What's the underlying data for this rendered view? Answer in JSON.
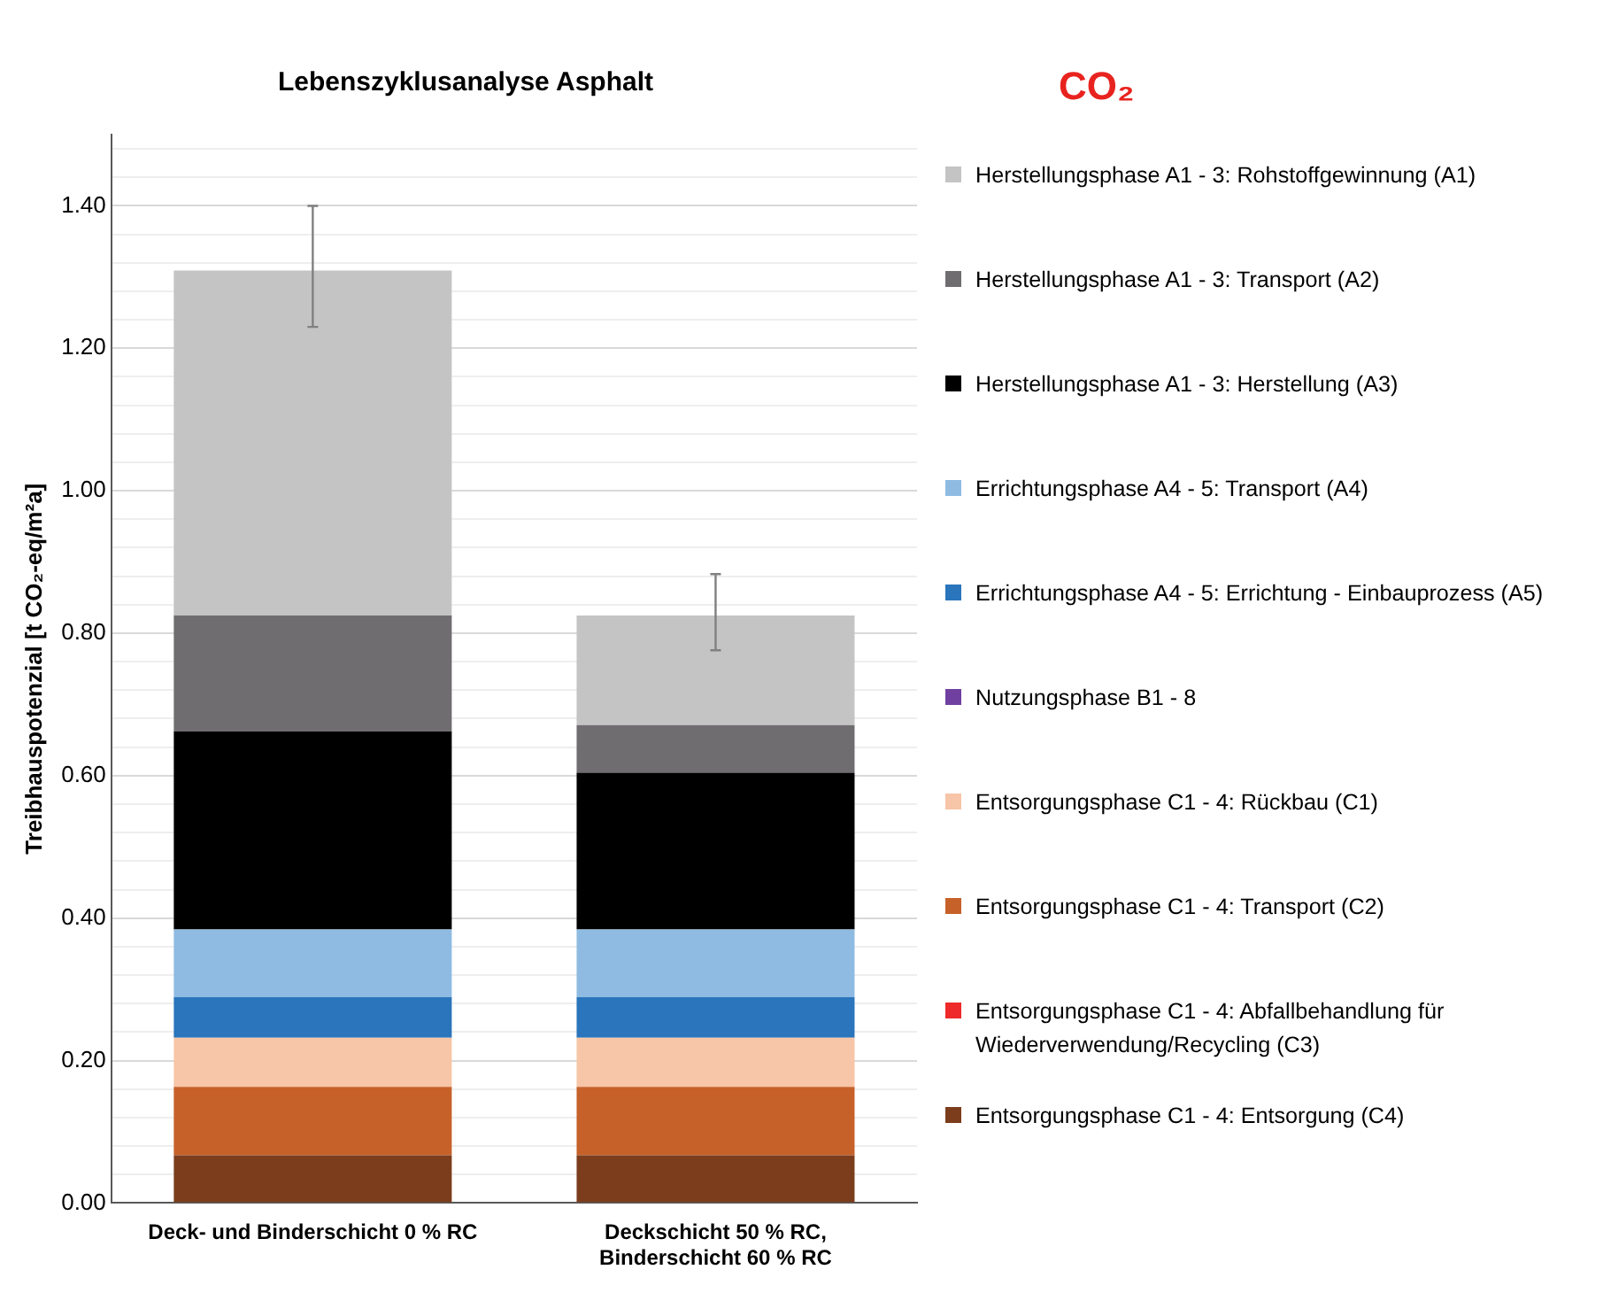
{
  "chart_data": {
    "type": "bar",
    "title": "Lebenszyklusanalyse Asphalt",
    "ylabel": "Treibhauspotenzial [t CO₂-eq/m²a]",
    "annotations": [
      "CO₂"
    ],
    "categories": [
      "Deck- und Binderschicht 0 % RC",
      "Deckschicht 50 % RC, Binderschicht 60 % RC"
    ],
    "stacked": true,
    "grid": "y",
    "legend": "right",
    "ylim": [
      0,
      1.5
    ],
    "yticks": [
      {
        "value": 0,
        "label": "0.00"
      },
      {
        "value": 0.04,
        "label": null
      },
      {
        "value": 0.08,
        "label": null
      },
      {
        "value": 0.12,
        "label": null
      },
      {
        "value": 0.16,
        "label": null
      },
      {
        "value": 0.2,
        "label": "0.20"
      },
      {
        "value": 0.24,
        "label": null
      },
      {
        "value": 0.28,
        "label": null
      },
      {
        "value": 0.32,
        "label": null
      },
      {
        "value": 0.36,
        "label": null
      },
      {
        "value": 0.4,
        "label": "0.40"
      },
      {
        "value": 0.44,
        "label": null
      },
      {
        "value": 0.48,
        "label": null
      },
      {
        "value": 0.52,
        "label": null
      },
      {
        "value": 0.56,
        "label": null
      },
      {
        "value": 0.6,
        "label": "0.60"
      },
      {
        "value": 0.64,
        "label": null
      },
      {
        "value": 0.68,
        "label": null
      },
      {
        "value": 0.72,
        "label": null
      },
      {
        "value": 0.76,
        "label": null
      },
      {
        "value": 0.8,
        "label": "0.80"
      },
      {
        "value": 0.84,
        "label": null
      },
      {
        "value": 0.88,
        "label": null
      },
      {
        "value": 0.92,
        "label": null
      },
      {
        "value": 0.96,
        "label": null
      },
      {
        "value": 1.0,
        "label": "1.00"
      },
      {
        "value": 1.04,
        "label": null
      },
      {
        "value": 1.08,
        "label": null
      },
      {
        "value": 1.12,
        "label": null
      },
      {
        "value": 1.16,
        "label": null
      },
      {
        "value": 1.2,
        "label": "1.20"
      },
      {
        "value": 1.24,
        "label": null
      },
      {
        "value": 1.28,
        "label": null
      },
      {
        "value": 1.32,
        "label": null
      },
      {
        "value": 1.36,
        "label": null
      },
      {
        "value": 1.4,
        "label": "1.40"
      },
      {
        "value": 1.44,
        "label": null
      },
      {
        "value": 1.48,
        "label": null
      }
    ],
    "series": [
      {
        "name": "Entsorgungsphase C1 - 4: Entsorgung (C4)",
        "color": "#7b3d1c",
        "values": [
          0.067,
          0.067
        ]
      },
      {
        "name": "Entsorgungsphase C1 - 4: Abfallbehandlung für Wiederverwendung/Recycling  (C3)",
        "color": "#ee2a2a",
        "values": [
          0,
          0
        ]
      },
      {
        "name": "Entsorgungsphase C1 - 4: Transport (C2)",
        "color": "#c6612a",
        "values": [
          0.096,
          0.096
        ]
      },
      {
        "name": "Entsorgungsphase C1 - 4: Rückbau (C1)",
        "color": "#f7c5a7",
        "values": [
          0.069,
          0.069
        ]
      },
      {
        "name": "Nutzungsphase B1 - 8",
        "color": "#7040a0",
        "values": [
          0,
          0
        ]
      },
      {
        "name": "Errichtungsphase A4 - 5: Errichtung - Einbauprozess (A5)",
        "color": "#2a75bb",
        "values": [
          0.057,
          0.057
        ]
      },
      {
        "name": "Errichtungsphase A4 - 5: Transport (A4)",
        "color": "#8fbbe2",
        "values": [
          0.095,
          0.095
        ]
      },
      {
        "name": "Herstellungsphase A1 - 3: Herstellung (A3)",
        "color": "#000000",
        "values": [
          0.278,
          0.22
        ]
      },
      {
        "name": "Herstellungsphase A1 - 3: Transport (A2)",
        "color": "#706d70",
        "values": [
          0.163,
          0.067
        ]
      },
      {
        "name": "Herstellungsphase A1 - 3: Rohstoffgewinnung (A1)",
        "color": "#c4c4c4",
        "values": [
          0.484,
          0.154
        ],
        "errors": [
          [
            1.23,
            1.4
          ],
          [
            0.776,
            0.883
          ]
        ]
      }
    ]
  }
}
